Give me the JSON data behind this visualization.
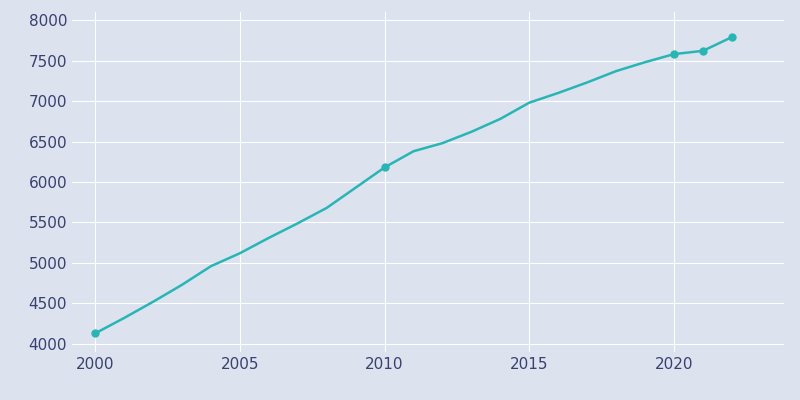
{
  "years": [
    2000,
    2001,
    2002,
    2003,
    2004,
    2005,
    2006,
    2007,
    2008,
    2009,
    2010,
    2011,
    2012,
    2013,
    2014,
    2015,
    2016,
    2017,
    2018,
    2019,
    2020,
    2021,
    2022
  ],
  "population": [
    4130,
    4320,
    4520,
    4730,
    4960,
    5120,
    5310,
    5490,
    5680,
    5930,
    6180,
    6380,
    6480,
    6620,
    6780,
    6980,
    7100,
    7230,
    7370,
    7480,
    7580,
    7620,
    7790
  ],
  "line_color": "#2ab5b5",
  "marker_color": "#2ab5b5",
  "axes_facecolor": "#dce3ef",
  "figure_facecolor": "#dce3ef",
  "grid_color": "#ffffff",
  "tick_color": "#3a4070",
  "ylim": [
    3900,
    8100
  ],
  "xlim": [
    1999.2,
    2023.8
  ],
  "yticks": [
    4000,
    4500,
    5000,
    5500,
    6000,
    6500,
    7000,
    7500,
    8000
  ],
  "xticks": [
    2000,
    2005,
    2010,
    2015,
    2020
  ],
  "marker_years": [
    2000,
    2010,
    2020,
    2021,
    2022
  ],
  "marker_pops": [
    4130,
    6180,
    7580,
    7620,
    7790
  ],
  "tick_fontsize": 11
}
